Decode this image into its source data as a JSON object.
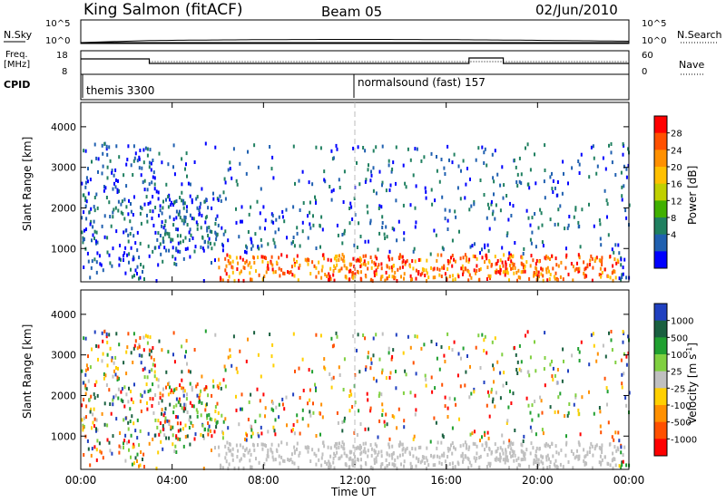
{
  "header": {
    "station": "King Salmon (fitACF)",
    "beam": "Beam 05",
    "date": "02/Jun/2010"
  },
  "summary_panel": {
    "left_label_top": "N.Sky",
    "left_label_freq_1": "Freq.",
    "left_label_freq_2": "[MHz]",
    "left_label_cpid": "CPID",
    "right_label_top": "N.Search",
    "right_label_bottom": "Nave",
    "sky_ticks": [
      "10^5",
      "10^0"
    ],
    "search_ticks": [
      "10^5",
      "10^0"
    ],
    "freq_ticks": [
      "18",
      "8"
    ],
    "nave_ticks": [
      "60",
      "0"
    ],
    "cpid_1": "themis 3300",
    "cpid_2": "normalsound (fast) 157"
  },
  "power_colorbar": {
    "title": "Power [dB]",
    "ticks": [
      "28",
      "24",
      "20",
      "16",
      "12",
      "8",
      "4"
    ],
    "colors": [
      "#ff0000",
      "#ff5000",
      "#ff9000",
      "#ffc000",
      "#c0d000",
      "#40b000",
      "#208060",
      "#2060b0",
      "#0000ff"
    ]
  },
  "velocity_colorbar": {
    "title": "Velocity [m s",
    "title_sup": "-1",
    "title_end": "]",
    "ticks": [
      "1000",
      "500",
      "100",
      "25",
      "-25",
      "-100",
      "-500",
      "-1000"
    ],
    "colors": [
      "#2040c0",
      "#1a6040",
      "#20a030",
      "#80d040",
      "#c0c0c0",
      "#ffd000",
      "#ff9000",
      "#ff5000",
      "#ff0000"
    ]
  },
  "chart_data": [
    {
      "type": "heatmap",
      "title": "",
      "xlabel": "Time UT",
      "ylabel": "Slant Range [km]",
      "x_ticks": [
        "00:00",
        "04:00",
        "08:00",
        "12:00",
        "16:00",
        "20:00",
        "00:00"
      ],
      "y_ticks": [
        "1000",
        "2000",
        "3000",
        "4000"
      ],
      "xlim": [
        0,
        24
      ],
      "ylim": [
        180,
        4600
      ],
      "colorbar": "Power [dB]"
    },
    {
      "type": "heatmap",
      "title": "",
      "xlabel": "Time UT",
      "ylabel": "Slant Range [km]",
      "x_ticks": [
        "00:00",
        "04:00",
        "08:00",
        "12:00",
        "16:00",
        "20:00",
        "00:00"
      ],
      "y_ticks": [
        "1000",
        "2000",
        "3000",
        "4000"
      ],
      "xlim": [
        0,
        24
      ],
      "ylim": [
        180,
        4600
      ],
      "colorbar": "Velocity [m s-1]"
    }
  ]
}
